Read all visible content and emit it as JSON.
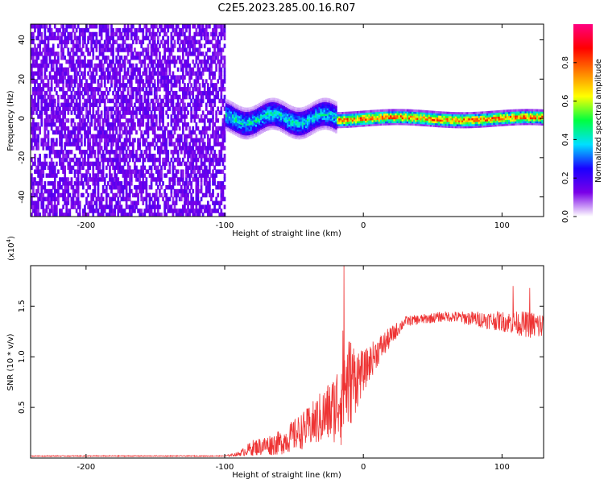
{
  "title": "C2E5.2023.285.00.16.R07",
  "chart_data": [
    {
      "type": "heatmap",
      "xlabel": "Height of straight line (km)",
      "ylabel": "Frequency (Hz)",
      "xlim": [
        -240,
        130
      ],
      "ylim": [
        -50,
        48
      ],
      "xticks": [
        -200,
        -100,
        0,
        100
      ],
      "yticks": [
        -40,
        -20,
        0,
        20,
        40
      ],
      "colorbar": {
        "label": "Normalized spectral amplitude",
        "range": [
          0,
          1
        ],
        "ticks": [
          0.0,
          0.2,
          0.4,
          0.6,
          0.8
        ],
        "colors": [
          "#ffffff",
          "#7a00e8",
          "#1a00ff",
          "#00e0ff",
          "#00ff40",
          "#ffff00",
          "#ff8000",
          "#ff0000",
          "#ff0080"
        ]
      },
      "regions": [
        {
          "x_from": -240,
          "x_to": -100,
          "freq_from": -50,
          "freq_to": 48,
          "amplitude": 0.15,
          "pattern": "broadband noise"
        },
        {
          "x_from": -100,
          "x_to": -20,
          "center_freq": 0,
          "band_halfwidth": 8,
          "amplitude": 0.45,
          "pattern": "wavy band"
        },
        {
          "x_from": -20,
          "x_to": 130,
          "center_freq": 0,
          "band_halfwidth": 4,
          "amplitude": 0.85,
          "pattern": "steady line"
        }
      ]
    },
    {
      "type": "line",
      "xlabel": "Height of straight line (km)",
      "ylabel": "SNR (10 * v/v)",
      "multiplier": "(x10",
      "multiplier_exp": "4",
      "multiplier_close": ")",
      "xlim": [
        -240,
        130
      ],
      "ylim": [
        0,
        1.9
      ],
      "xticks": [
        -200,
        -100,
        0,
        100
      ],
      "yticks": [
        0.5,
        1.0,
        1.5
      ],
      "ytick_labels": [
        "0.5",
        "1.0",
        "1.5"
      ],
      "color": "#ee3333",
      "envelope": [
        {
          "x": -240,
          "y": 0.02,
          "noise": 0.005
        },
        {
          "x": -100,
          "y": 0.02,
          "noise": 0.005
        },
        {
          "x": -90,
          "y": 0.04,
          "noise": 0.02
        },
        {
          "x": -80,
          "y": 0.1,
          "noise": 0.08
        },
        {
          "x": -60,
          "y": 0.15,
          "noise": 0.12
        },
        {
          "x": -40,
          "y": 0.3,
          "noise": 0.2
        },
        {
          "x": -20,
          "y": 0.5,
          "noise": 0.35
        },
        {
          "x": -15,
          "y": 0.7,
          "noise": 0.6
        },
        {
          "x": 0,
          "y": 0.85,
          "noise": 0.2
        },
        {
          "x": 10,
          "y": 1.05,
          "noise": 0.15
        },
        {
          "x": 20,
          "y": 1.2,
          "noise": 0.1
        },
        {
          "x": 30,
          "y": 1.35,
          "noise": 0.05
        },
        {
          "x": 60,
          "y": 1.4,
          "noise": 0.05
        },
        {
          "x": 100,
          "y": 1.35,
          "noise": 0.1
        },
        {
          "x": 130,
          "y": 1.3,
          "noise": 0.15
        }
      ],
      "spikes": [
        {
          "x": -14,
          "y": 1.9
        },
        {
          "x": 108,
          "y": 1.7
        },
        {
          "x": 120,
          "y": 1.68
        }
      ]
    }
  ]
}
